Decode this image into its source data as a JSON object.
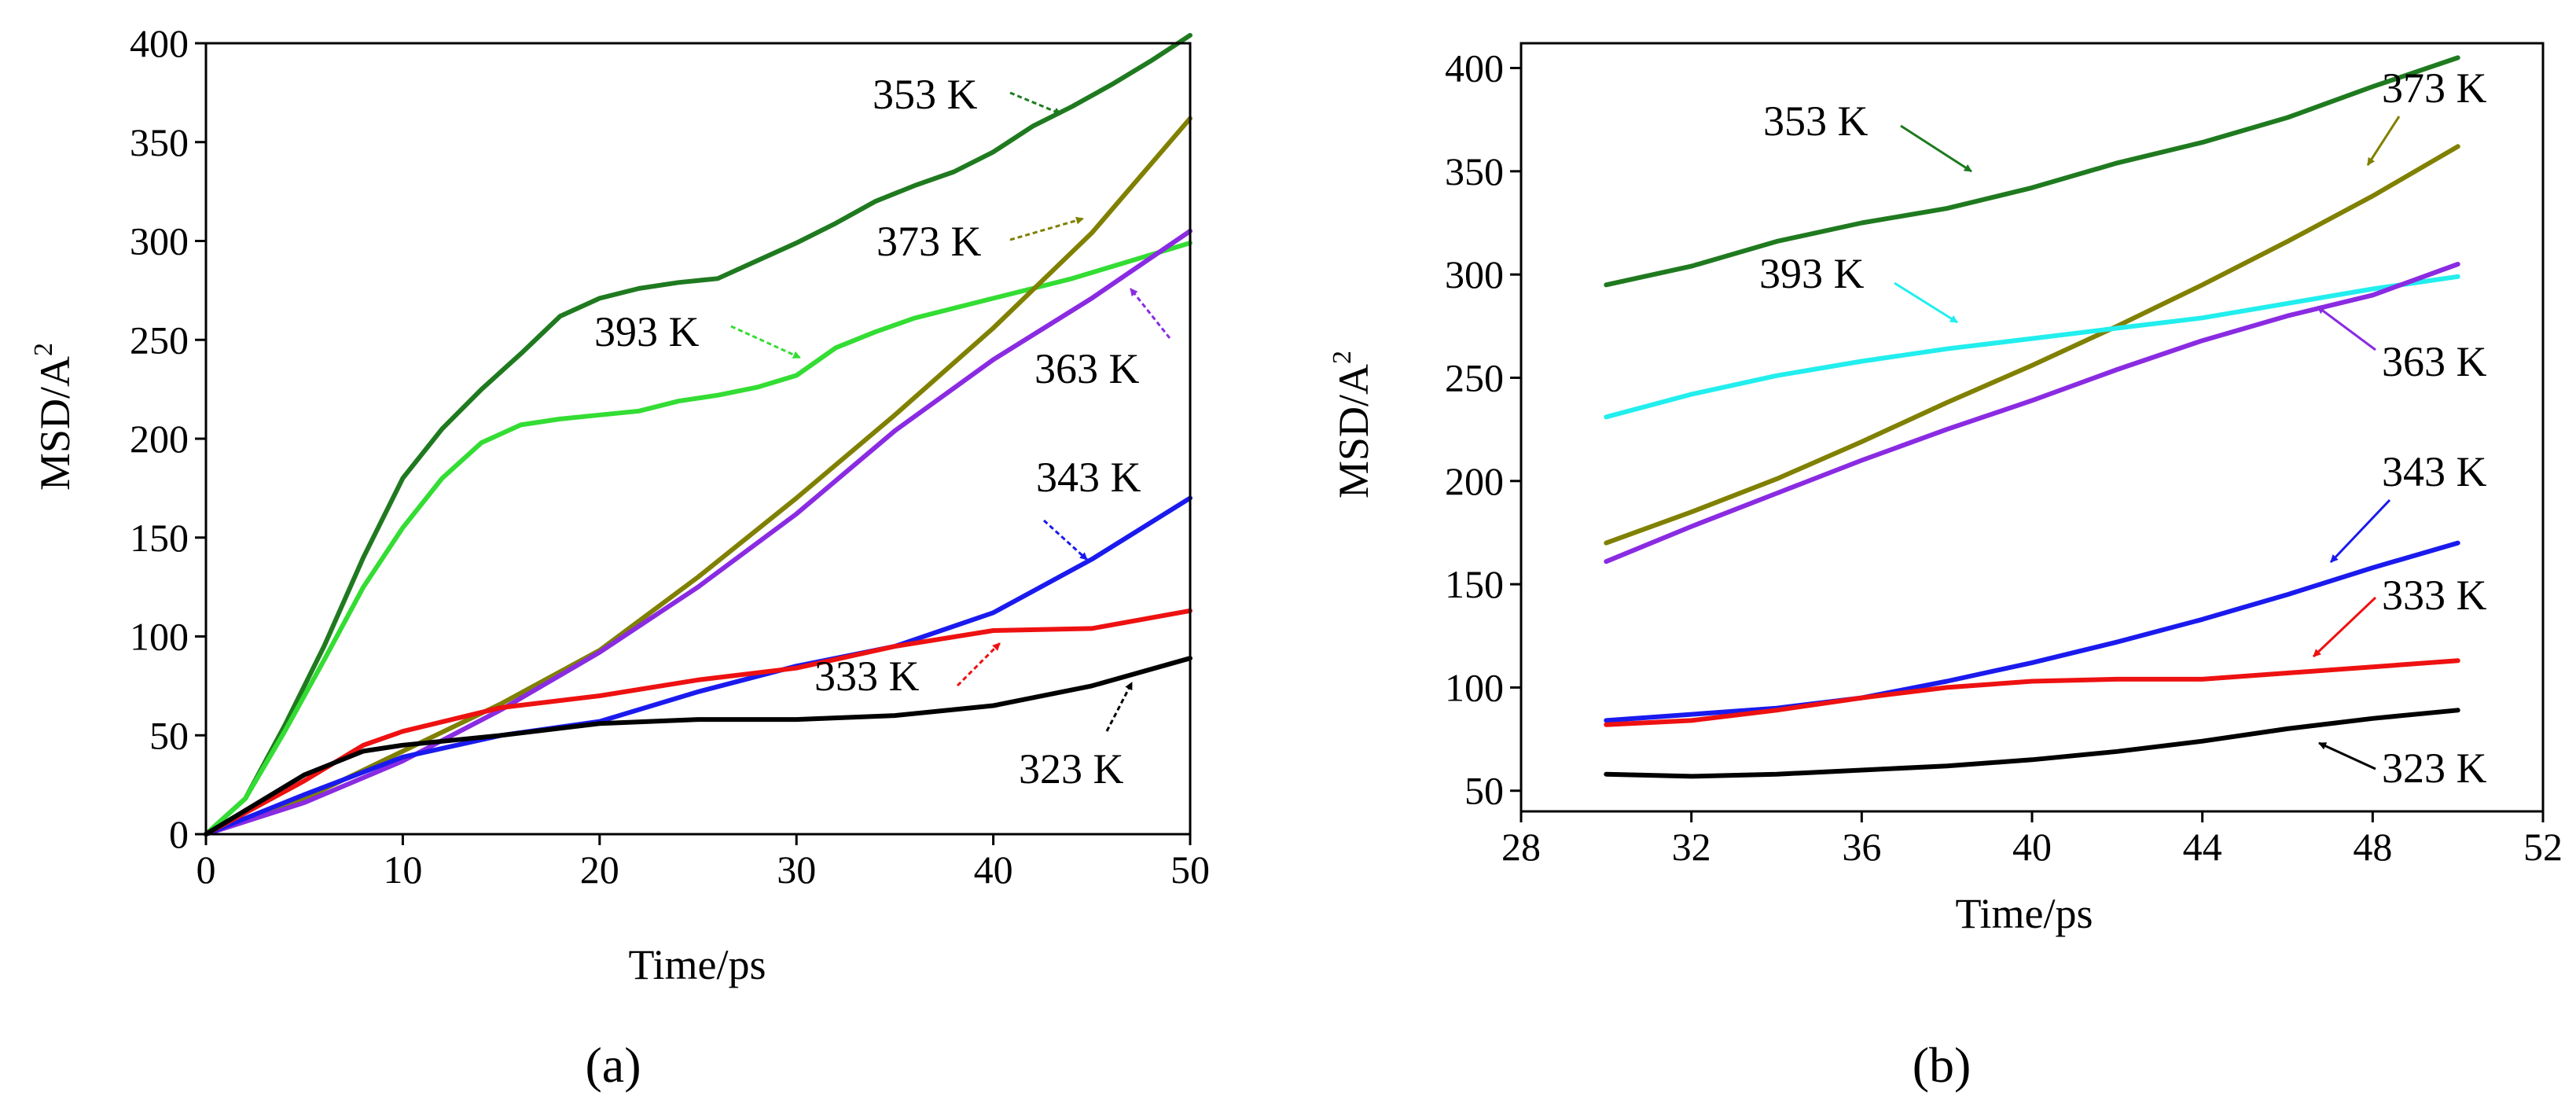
{
  "chart_data": [
    {
      "type": "line",
      "panel_label": "(a)",
      "xlabel": "Time/ps",
      "ylabel": "MSD/A",
      "ylabel_superscript": "2",
      "xlim": [
        0,
        50
      ],
      "ylim": [
        0,
        400
      ],
      "xticks": [
        0,
        10,
        20,
        30,
        40,
        50
      ],
      "yticks": [
        0,
        50,
        100,
        150,
        200,
        250,
        300,
        350,
        400
      ],
      "series": [
        {
          "name": "353 K",
          "color": "#1f7a1f",
          "x": [
            0,
            2,
            4,
            6,
            8,
            10,
            12,
            14,
            16,
            18,
            20,
            22,
            24,
            26,
            28,
            30,
            32,
            34,
            36,
            38,
            40,
            42,
            44,
            46,
            48,
            50
          ],
          "y": [
            0,
            18,
            55,
            95,
            140,
            180,
            205,
            225,
            243,
            262,
            271,
            276,
            279,
            281,
            290,
            299,
            309,
            320,
            328,
            335,
            345,
            358,
            368,
            379,
            391,
            404
          ]
        },
        {
          "name": "393 K",
          "color": "#33dd33",
          "x": [
            0,
            2,
            4,
            6,
            8,
            10,
            12,
            14,
            16,
            18,
            20,
            22,
            24,
            26,
            28,
            30,
            32,
            34,
            36,
            38,
            40,
            42,
            44,
            46,
            48,
            50
          ],
          "y": [
            0,
            18,
            52,
            88,
            125,
            155,
            180,
            198,
            207,
            210,
            212,
            214,
            219,
            222,
            226,
            232,
            246,
            254,
            261,
            266,
            271,
            276,
            281,
            287,
            293,
            299
          ]
        },
        {
          "name": "373 K",
          "color": "#808000",
          "x": [
            0,
            5,
            10,
            15,
            20,
            25,
            30,
            35,
            40,
            45,
            50
          ],
          "y": [
            0,
            18,
            42,
            66,
            93,
            130,
            170,
            212,
            256,
            304,
            362
          ]
        },
        {
          "name": "363 K",
          "color": "#8a2be2",
          "x": [
            0,
            5,
            10,
            15,
            20,
            25,
            30,
            35,
            40,
            45,
            50
          ],
          "y": [
            0,
            16,
            37,
            63,
            92,
            125,
            162,
            204,
            240,
            271,
            305
          ]
        },
        {
          "name": "343 K",
          "color": "#1a1aee",
          "x": [
            0,
            5,
            10,
            15,
            20,
            25,
            30,
            35,
            40,
            45,
            50
          ],
          "y": [
            0,
            20,
            39,
            50,
            57,
            72,
            85,
            95,
            112,
            139,
            170
          ]
        },
        {
          "name": "333 K",
          "color": "#ee1111",
          "x": [
            0,
            5,
            8,
            10,
            15,
            20,
            25,
            30,
            35,
            40,
            45,
            50
          ],
          "y": [
            0,
            27,
            45,
            52,
            64,
            70,
            78,
            84,
            95,
            103,
            104,
            113
          ]
        },
        {
          "name": "323 K",
          "color": "#000000",
          "x": [
            0,
            5,
            8,
            10,
            15,
            20,
            25,
            30,
            35,
            40,
            45,
            50
          ],
          "y": [
            0,
            30,
            42,
            45,
            50,
            56,
            58,
            58,
            60,
            65,
            75,
            89
          ]
        }
      ]
    },
    {
      "type": "line",
      "panel_label": "(b)",
      "xlabel": "Time/ps",
      "ylabel": "MSD/A",
      "ylabel_superscript": "2",
      "xlim": [
        28,
        52
      ],
      "ylim": [
        40,
        412
      ],
      "xticks": [
        28,
        32,
        36,
        40,
        44,
        48,
        52
      ],
      "yticks": [
        50,
        100,
        150,
        200,
        250,
        300,
        350,
        400
      ],
      "series": [
        {
          "name": "353 K",
          "color": "#1f7a1f",
          "x": [
            30,
            32,
            34,
            36,
            38,
            40,
            42,
            44,
            46,
            48,
            50
          ],
          "y": [
            295,
            304,
            316,
            325,
            332,
            342,
            354,
            364,
            376,
            391,
            405
          ]
        },
        {
          "name": "373 K",
          "color": "#808000",
          "x": [
            30,
            32,
            34,
            36,
            38,
            40,
            42,
            44,
            46,
            48,
            50
          ],
          "y": [
            170,
            185,
            201,
            219,
            238,
            256,
            275,
            295,
            316,
            338,
            362
          ]
        },
        {
          "name": "393 K",
          "color": "#22eeee",
          "x": [
            30,
            32,
            34,
            36,
            38,
            40,
            42,
            44,
            46,
            48,
            50
          ],
          "y": [
            231,
            242,
            251,
            258,
            264,
            269,
            274,
            279,
            286,
            293,
            299
          ]
        },
        {
          "name": "363 K",
          "color": "#8a2be2",
          "x": [
            30,
            32,
            34,
            36,
            38,
            40,
            42,
            44,
            46,
            48,
            50
          ],
          "y": [
            161,
            178,
            194,
            210,
            225,
            239,
            254,
            268,
            280,
            290,
            305
          ]
        },
        {
          "name": "343 K",
          "color": "#1a1aee",
          "x": [
            30,
            32,
            34,
            36,
            38,
            40,
            42,
            44,
            46,
            48,
            50
          ],
          "y": [
            84,
            87,
            90,
            95,
            103,
            112,
            122,
            133,
            145,
            158,
            170
          ]
        },
        {
          "name": "333 K",
          "color": "#ee1111",
          "x": [
            30,
            32,
            34,
            36,
            38,
            40,
            42,
            44,
            46,
            48,
            50
          ],
          "y": [
            82,
            84,
            89,
            95,
            100,
            103,
            104,
            104,
            107,
            110,
            113
          ]
        },
        {
          "name": "323 K",
          "color": "#000000",
          "x": [
            30,
            32,
            34,
            36,
            38,
            40,
            42,
            44,
            46,
            48,
            50
          ],
          "y": [
            58,
            57,
            58,
            60,
            62,
            65,
            69,
            74,
            80,
            85,
            89
          ]
        }
      ]
    }
  ]
}
